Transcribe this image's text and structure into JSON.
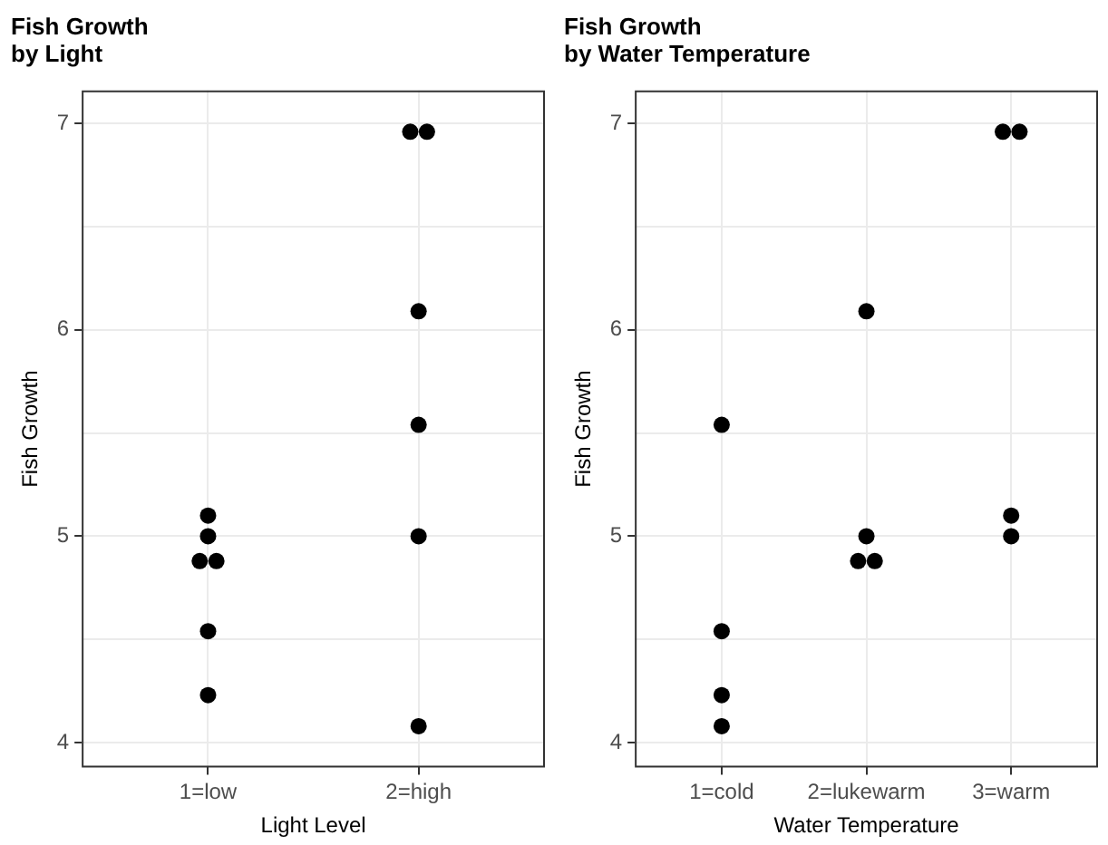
{
  "chart_data": [
    {
      "type": "scatter",
      "title": "Fish Growth\nby Light",
      "xlabel": "Light Level",
      "ylabel": "Fish Growth",
      "categories": [
        "1=low",
        "2=high"
      ],
      "ylim": [
        3.88,
        7.16
      ],
      "yticks": [
        4,
        {
          "value": 4.5,
          "label": null
        },
        5,
        {
          "value": 5.5,
          "label": null
        },
        6,
        {
          "value": 6.5,
          "label": null
        },
        7
      ],
      "grid": true,
      "legend": false,
      "marker": "circle",
      "series": [
        {
          "color": "#000000",
          "x": [
            "1=low",
            "1=low",
            "1=low",
            "1=low",
            "1=low",
            "1=low",
            "2=high",
            "2=high",
            "2=high",
            "2=high",
            "2=high",
            "2=high"
          ],
          "values": [
            5.1,
            5.0,
            4.88,
            4.88,
            4.54,
            4.23,
            6.96,
            6.96,
            6.09,
            5.54,
            5.0,
            4.08
          ]
        }
      ]
    },
    {
      "type": "scatter",
      "title": "Fish Growth\nby Water Temperature",
      "xlabel": "Water Temperature",
      "ylabel": "Fish Growth",
      "categories": [
        "1=cold",
        "2=lukewarm",
        "3=warm"
      ],
      "ylim": [
        3.88,
        7.16
      ],
      "yticks": [
        4,
        {
          "value": 4.5,
          "label": null
        },
        5,
        {
          "value": 5.5,
          "label": null
        },
        6,
        {
          "value": 6.5,
          "label": null
        },
        7
      ],
      "grid": true,
      "legend": false,
      "marker": "circle",
      "series": [
        {
          "color": "#000000",
          "x": [
            "1=cold",
            "1=cold",
            "1=cold",
            "1=cold",
            "2=lukewarm",
            "2=lukewarm",
            "2=lukewarm",
            "2=lukewarm",
            "3=warm",
            "3=warm",
            "3=warm",
            "3=warm"
          ],
          "values": [
            5.54,
            4.54,
            4.23,
            4.08,
            6.09,
            5.0,
            4.88,
            4.88,
            6.96,
            6.96,
            5.1,
            5.0
          ]
        }
      ]
    }
  ]
}
